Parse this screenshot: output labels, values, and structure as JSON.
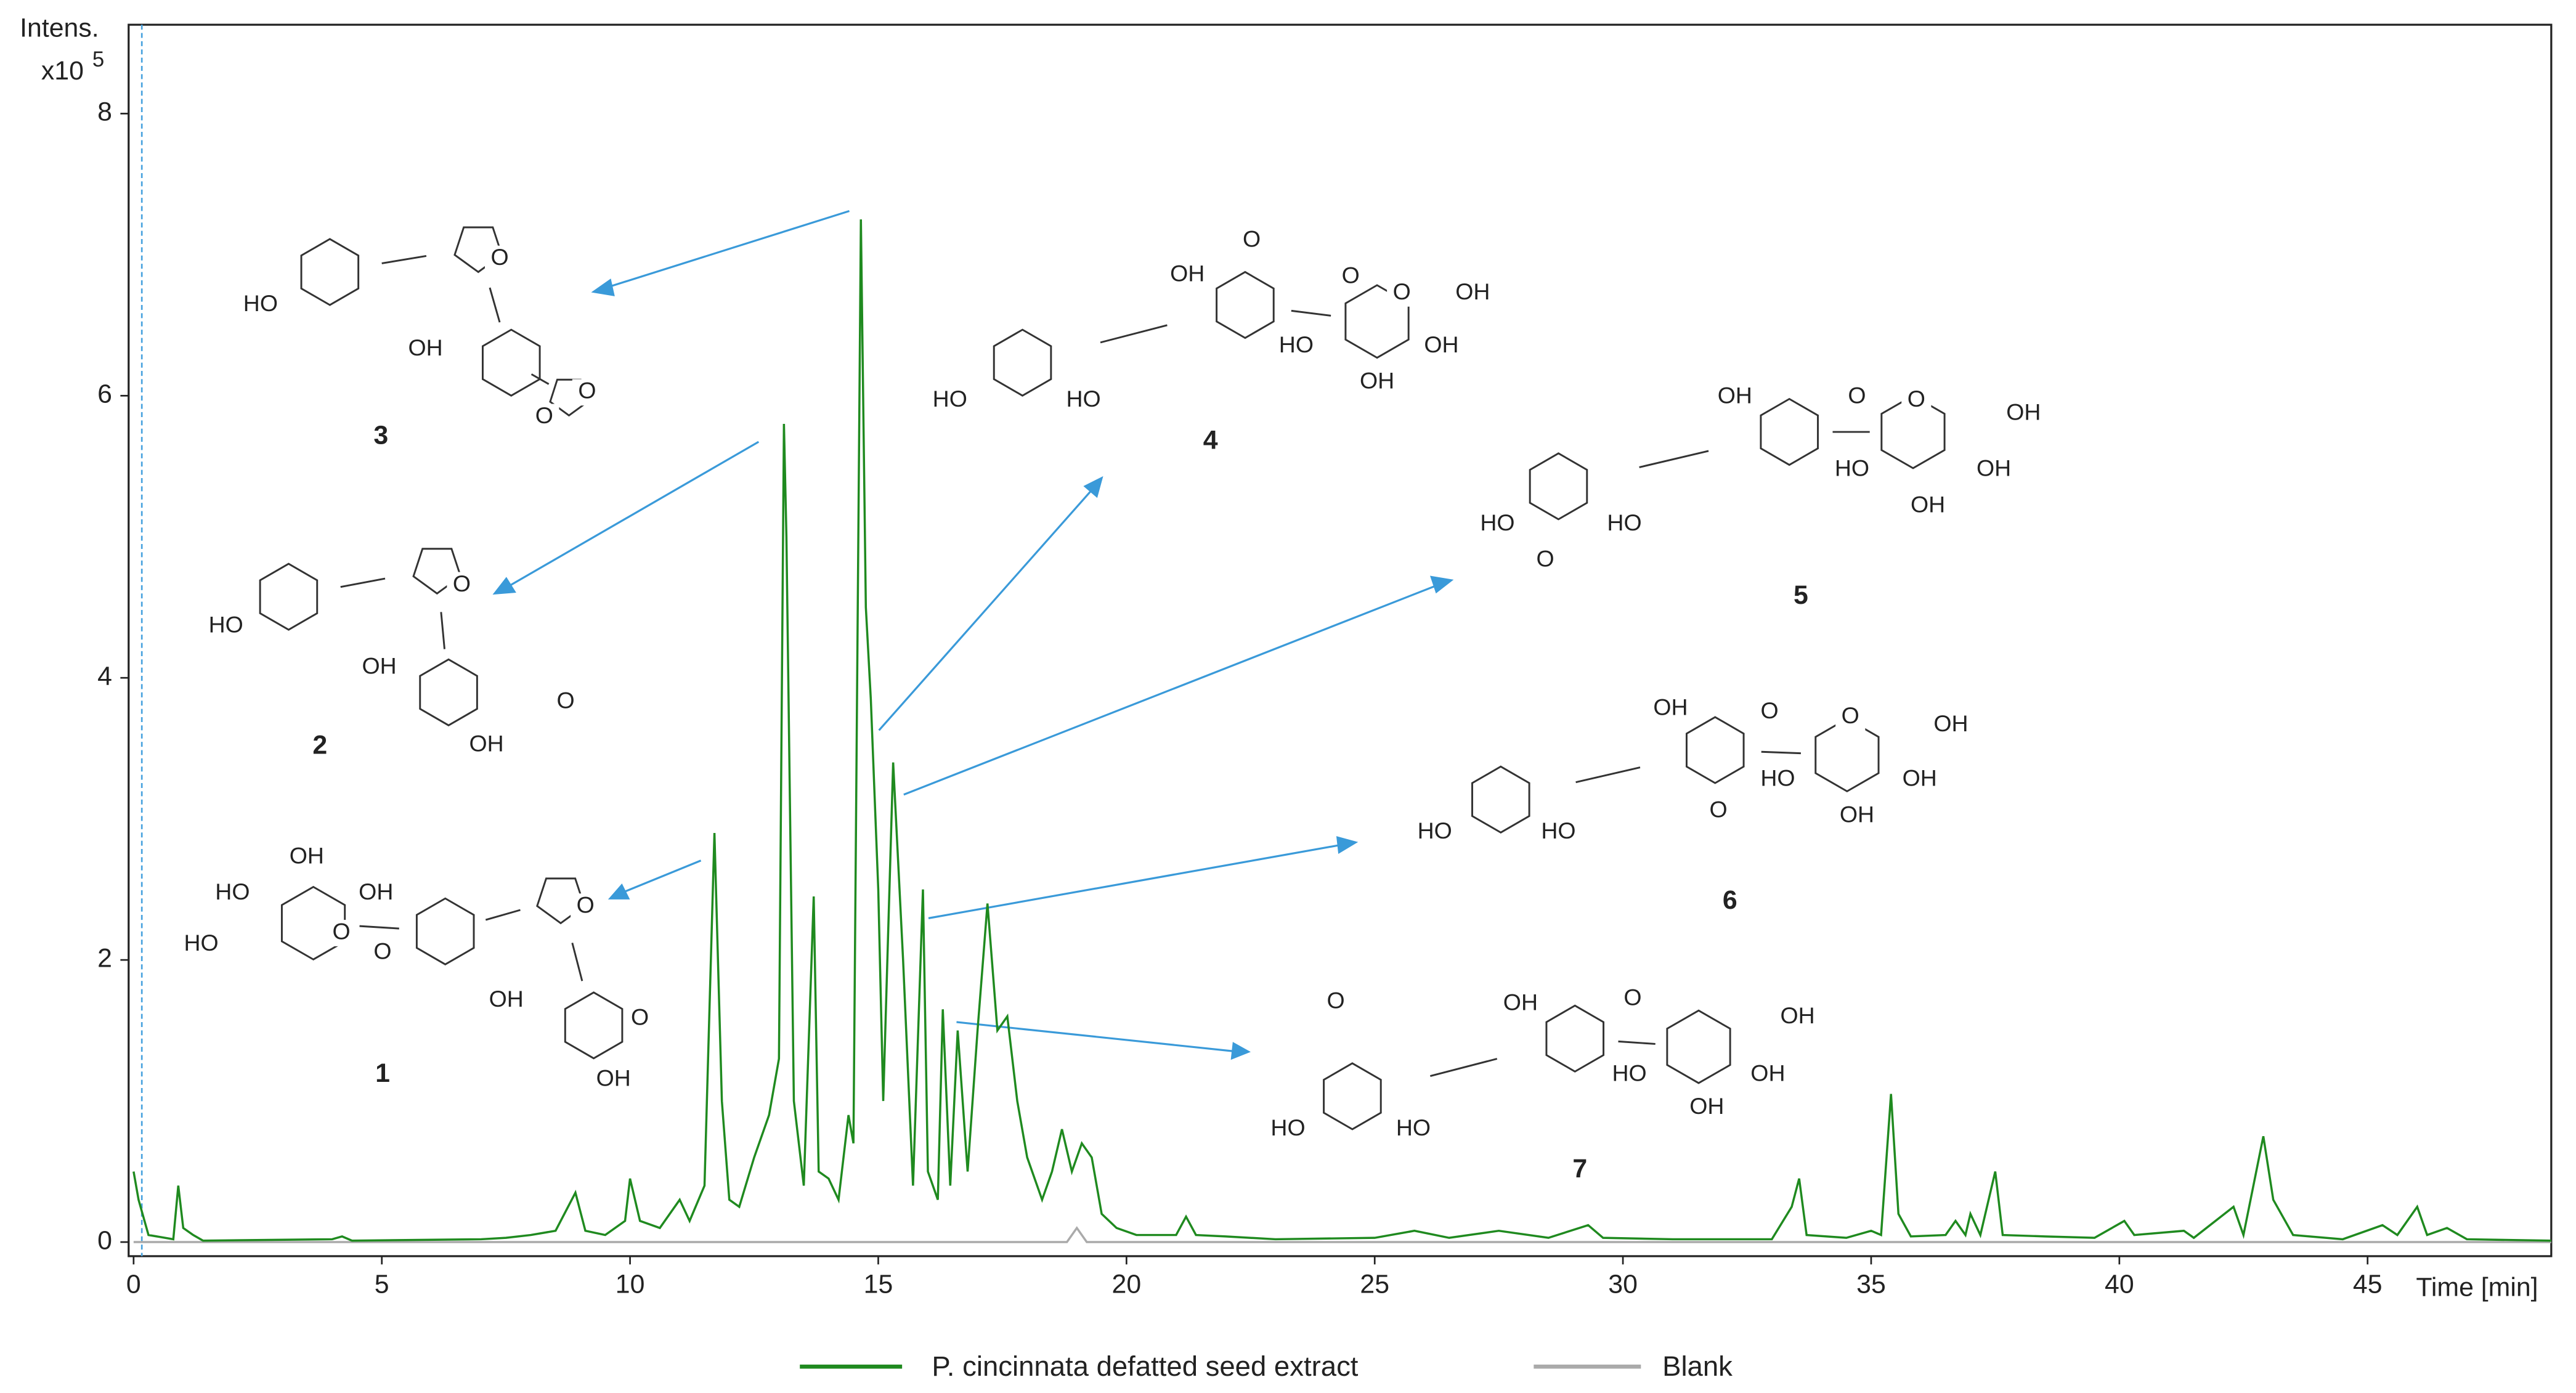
{
  "chart_data": {
    "type": "line",
    "y_label": "Intens.",
    "y_multiplier": "x10",
    "y_multiplier_exp": "5",
    "x_label": "Time [min]",
    "xlim": [
      -0.1,
      48.7
    ],
    "ylim": [
      -0.1,
      8.63
    ],
    "xticks": [
      0,
      5,
      10,
      15,
      20,
      25,
      30,
      35,
      40,
      45
    ],
    "yticks": [
      0,
      2,
      4,
      6,
      8
    ],
    "series": [
      {
        "name": "P. cincinnata defatted seed extract",
        "color": "#1f8a1f",
        "x": [
          0,
          0.1,
          0.3,
          0.8,
          0.9,
          1.0,
          1.2,
          1.4,
          4,
          4.2,
          4.4,
          7,
          7.5,
          8,
          8.5,
          8.9,
          9.1,
          9.5,
          9.9,
          10.0,
          10.2,
          10.6,
          11.0,
          11.2,
          11.5,
          11.7,
          11.85,
          12.0,
          12.2,
          12.5,
          12.8,
          13.0,
          13.1,
          13.15,
          13.3,
          13.5,
          13.7,
          13.8,
          14.0,
          14.2,
          14.4,
          14.5,
          14.65,
          14.75,
          14.85,
          15.0,
          15.1,
          15.3,
          15.5,
          15.7,
          15.9,
          16.0,
          16.2,
          16.3,
          16.45,
          16.6,
          16.8,
          17.0,
          17.2,
          17.4,
          17.6,
          17.8,
          18.0,
          18.3,
          18.5,
          18.7,
          18.9,
          19.1,
          19.3,
          19.5,
          19.8,
          20.2,
          21.0,
          21.2,
          21.4,
          22,
          23,
          25,
          25.8,
          26.5,
          27.5,
          28.5,
          29.3,
          29.6,
          31,
          32,
          33,
          33.4,
          33.55,
          33.7,
          34.5,
          35.0,
          35.2,
          35.4,
          35.55,
          35.8,
          36.5,
          36.7,
          36.9,
          37.0,
          37.2,
          37.5,
          37.65,
          38.5,
          39.5,
          40.1,
          40.3,
          41.3,
          41.5,
          42.3,
          42.5,
          42.9,
          43.1,
          43.5,
          44.5,
          45.3,
          45.6,
          46.0,
          46.2,
          46.6,
          47,
          48.7
        ],
        "values": [
          0.5,
          0.3,
          0.05,
          0.02,
          0.4,
          0.1,
          0.05,
          0.01,
          0.02,
          0.04,
          0.01,
          0.02,
          0.03,
          0.05,
          0.08,
          0.35,
          0.08,
          0.05,
          0.15,
          0.45,
          0.15,
          0.1,
          0.3,
          0.15,
          0.4,
          2.9,
          1.0,
          0.3,
          0.25,
          0.6,
          0.9,
          1.3,
          5.8,
          5.0,
          1.0,
          0.4,
          2.45,
          0.5,
          0.45,
          0.3,
          0.9,
          0.7,
          7.25,
          4.5,
          3.85,
          2.5,
          1.0,
          3.4,
          2.0,
          0.4,
          2.5,
          0.5,
          0.3,
          1.65,
          0.4,
          1.5,
          0.5,
          1.5,
          2.4,
          1.5,
          1.6,
          1.0,
          0.6,
          0.3,
          0.5,
          0.8,
          0.5,
          0.7,
          0.6,
          0.2,
          0.1,
          0.05,
          0.05,
          0.18,
          0.05,
          0.04,
          0.02,
          0.03,
          0.08,
          0.03,
          0.08,
          0.03,
          0.12,
          0.03,
          0.02,
          0.02,
          0.02,
          0.25,
          0.45,
          0.05,
          0.03,
          0.08,
          0.05,
          1.05,
          0.2,
          0.04,
          0.05,
          0.15,
          0.05,
          0.2,
          0.05,
          0.5,
          0.05,
          0.04,
          0.03,
          0.15,
          0.05,
          0.08,
          0.03,
          0.25,
          0.05,
          0.75,
          0.3,
          0.05,
          0.02,
          0.12,
          0.05,
          0.25,
          0.05,
          0.1,
          0.02,
          0.01
        ]
      },
      {
        "name": "Blank",
        "color": "#aaaaaa",
        "x": [
          0,
          18.8,
          19.0,
          19.2,
          48.7
        ],
        "values": [
          0,
          0,
          0.1,
          0,
          0
        ]
      }
    ],
    "structures": [
      {
        "number": "3",
        "labels": [
          "HO",
          "O",
          "OH",
          "O",
          "O"
        ]
      },
      {
        "number": "2",
        "labels": [
          "HO",
          "O",
          "OH",
          "O",
          "OH"
        ]
      },
      {
        "number": "1",
        "labels": [
          "OH",
          "HO",
          "OH",
          "HO",
          "O",
          "O",
          "OH",
          "O",
          "O",
          "OH"
        ]
      },
      {
        "number": "4",
        "labels": [
          "O",
          "OH",
          "O",
          "O",
          "OH",
          "HO",
          "HO",
          "OH",
          "HO",
          "OH"
        ]
      },
      {
        "number": "5",
        "labels": [
          "OH",
          "O",
          "O",
          "OH",
          "HO",
          "OH",
          "OH",
          "HO",
          "HO",
          "O"
        ]
      },
      {
        "number": "6",
        "labels": [
          "OH",
          "O",
          "O",
          "OH",
          "HO",
          "OH",
          "OH",
          "HO",
          "HO",
          "O"
        ]
      },
      {
        "number": "7",
        "labels": [
          "O",
          "OH",
          "O",
          "OH",
          "HO",
          "OH",
          "OH",
          "HO",
          "HO"
        ]
      }
    ]
  }
}
